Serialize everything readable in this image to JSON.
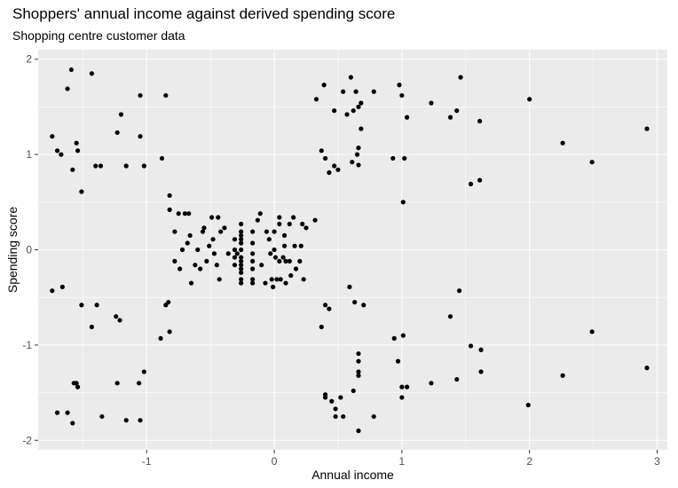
{
  "chart_data": {
    "type": "scatter",
    "title": "Shoppers' annual income against derived spending score",
    "subtitle": "Shopping centre customer data",
    "xlabel": "Annual income",
    "ylabel": "Spending score",
    "xlim": [
      -1.85,
      3.08
    ],
    "ylim": [
      -2.1,
      2.1
    ],
    "x_ticks": [
      -1,
      0,
      1,
      2,
      3
    ],
    "y_ticks": [
      -2,
      -1,
      0,
      1,
      2
    ],
    "x_tick_labels": [
      "-1",
      "0",
      "1",
      "2",
      "3"
    ],
    "y_tick_labels": [
      "-2",
      "-1",
      "0",
      "1",
      "2"
    ],
    "grid": true,
    "panel_color": "#ebebeb",
    "grid_color": "#ffffff",
    "point_color": "#000000",
    "points": [
      [
        -1.74,
        1.19
      ],
      [
        -1.7,
        1.04
      ],
      [
        -1.67,
        1.0
      ],
      [
        -1.62,
        1.69
      ],
      [
        -1.59,
        1.89
      ],
      [
        -1.58,
        0.84
      ],
      [
        -1.55,
        1.12
      ],
      [
        -1.54,
        1.04
      ],
      [
        -1.51,
        0.61
      ],
      [
        -1.43,
        1.85
      ],
      [
        -1.4,
        0.88
      ],
      [
        -1.36,
        0.88
      ],
      [
        -1.23,
        1.23
      ],
      [
        -1.2,
        1.42
      ],
      [
        -1.16,
        0.88
      ],
      [
        -1.05,
        1.62
      ],
      [
        -1.05,
        1.19
      ],
      [
        -1.02,
        0.88
      ],
      [
        -0.88,
        0.96
      ],
      [
        -0.85,
        1.62
      ],
      [
        -1.74,
        -0.43
      ],
      [
        -1.66,
        -0.39
      ],
      [
        -1.51,
        -0.58
      ],
      [
        -1.43,
        -0.81
      ],
      [
        -1.39,
        -0.58
      ],
      [
        -1.24,
        -0.7
      ],
      [
        -1.21,
        -0.74
      ],
      [
        -0.89,
        -0.93
      ],
      [
        -0.85,
        -0.58
      ],
      [
        -0.83,
        -0.55
      ],
      [
        -0.82,
        -0.86
      ],
      [
        -1.7,
        -1.71
      ],
      [
        -1.62,
        -1.71
      ],
      [
        -1.58,
        -1.82
      ],
      [
        -1.57,
        -1.4
      ],
      [
        -1.55,
        -1.4
      ],
      [
        -1.54,
        -1.44
      ],
      [
        -1.35,
        -1.75
      ],
      [
        -1.23,
        -1.4
      ],
      [
        -1.16,
        -1.79
      ],
      [
        -1.06,
        -1.4
      ],
      [
        -1.05,
        -1.79
      ],
      [
        -1.02,
        -1.28
      ],
      [
        -0.82,
        0.57
      ],
      [
        -0.82,
        0.42
      ],
      [
        -0.78,
        0.19
      ],
      [
        -0.78,
        -0.12
      ],
      [
        -0.75,
        0.38
      ],
      [
        -0.74,
        -0.2
      ],
      [
        -0.72,
        0.0
      ],
      [
        -0.7,
        0.38
      ],
      [
        -0.68,
        0.07
      ],
      [
        -0.67,
        0.38
      ],
      [
        -0.66,
        0.15
      ],
      [
        -0.65,
        -0.35
      ],
      [
        -0.62,
        -0.16
      ],
      [
        -0.6,
        0.0
      ],
      [
        -0.58,
        -0.2
      ],
      [
        -0.56,
        0.19
      ],
      [
        -0.55,
        0.23
      ],
      [
        -0.53,
        -0.12
      ],
      [
        -0.51,
        0.04
      ],
      [
        -0.49,
        0.34
      ],
      [
        -0.48,
        0.11
      ],
      [
        -0.47,
        -0.04
      ],
      [
        -0.45,
        -0.16
      ],
      [
        -0.44,
        0.34
      ],
      [
        -0.43,
        -0.31
      ],
      [
        -0.42,
        0.19
      ],
      [
        -0.39,
        0.23
      ],
      [
        -0.36,
        -0.04
      ],
      [
        -0.31,
        0.11
      ],
      [
        -0.31,
        0.0
      ],
      [
        -0.31,
        -0.08
      ],
      [
        -0.31,
        -0.16
      ],
      [
        -0.29,
        -0.04
      ],
      [
        -0.26,
        0.27
      ],
      [
        -0.26,
        0.19
      ],
      [
        -0.26,
        0.15
      ],
      [
        -0.26,
        0.11
      ],
      [
        -0.26,
        0.07
      ],
      [
        -0.26,
        0.0
      ],
      [
        -0.26,
        -0.08
      ],
      [
        -0.26,
        -0.12
      ],
      [
        -0.26,
        -0.16
      ],
      [
        -0.26,
        -0.2
      ],
      [
        -0.26,
        -0.24
      ],
      [
        -0.26,
        -0.31
      ],
      [
        -0.26,
        -0.35
      ],
      [
        -0.17,
        0.19
      ],
      [
        -0.17,
        0.07
      ],
      [
        -0.17,
        -0.04
      ],
      [
        -0.17,
        -0.12
      ],
      [
        -0.17,
        -0.2
      ],
      [
        -0.17,
        -0.31
      ],
      [
        -0.17,
        -0.35
      ],
      [
        -0.13,
        0.31
      ],
      [
        -0.11,
        0.38
      ],
      [
        -0.1,
        -0.16
      ],
      [
        -0.07,
        -0.35
      ],
      [
        -0.06,
        0.19
      ],
      [
        -0.04,
        0.11
      ],
      [
        -0.03,
        -0.04
      ],
      [
        -0.02,
        -0.31
      ],
      [
        -0.01,
        -0.39
      ],
      [
        0.0,
        0.19
      ],
      [
        0.0,
        0.0
      ],
      [
        0.01,
        -0.08
      ],
      [
        0.02,
        -0.31
      ],
      [
        0.04,
        0.34
      ],
      [
        0.04,
        0.27
      ],
      [
        0.04,
        -0.12
      ],
      [
        0.05,
        -0.31
      ],
      [
        0.07,
        -0.08
      ],
      [
        0.08,
        0.15
      ],
      [
        0.08,
        0.04
      ],
      [
        0.09,
        -0.12
      ],
      [
        0.09,
        -0.35
      ],
      [
        0.12,
        0.27
      ],
      [
        0.12,
        -0.12
      ],
      [
        0.13,
        -0.27
      ],
      [
        0.15,
        0.34
      ],
      [
        0.16,
        0.04
      ],
      [
        0.17,
        -0.2
      ],
      [
        0.2,
        -0.12
      ],
      [
        0.21,
        0.04
      ],
      [
        0.22,
        0.27
      ],
      [
        0.23,
        -0.31
      ],
      [
        0.25,
        0.23
      ],
      [
        0.32,
        0.31
      ],
      [
        0.33,
        1.58
      ],
      [
        0.37,
        1.04
      ],
      [
        0.39,
        1.73
      ],
      [
        0.4,
        0.96
      ],
      [
        0.43,
        0.81
      ],
      [
        0.47,
        1.46
      ],
      [
        0.47,
        0.88
      ],
      [
        0.5,
        0.84
      ],
      [
        0.54,
        1.66
      ],
      [
        0.57,
        1.42
      ],
      [
        0.6,
        1.81
      ],
      [
        0.61,
        0.92
      ],
      [
        0.62,
        1.46
      ],
      [
        0.64,
        1.66
      ],
      [
        0.65,
        1.0
      ],
      [
        0.66,
        1.5
      ],
      [
        0.66,
        0.89
      ],
      [
        0.66,
        1.07
      ],
      [
        0.68,
        1.27
      ],
      [
        0.68,
        1.54
      ],
      [
        0.78,
        1.66
      ],
      [
        0.93,
        0.96
      ],
      [
        0.98,
        1.73
      ],
      [
        1.0,
        1.62
      ],
      [
        1.02,
        0.96
      ],
      [
        1.01,
        0.5
      ],
      [
        1.04,
        1.39
      ],
      [
        1.23,
        1.54
      ],
      [
        1.38,
        1.39
      ],
      [
        1.43,
        1.46
      ],
      [
        1.46,
        1.81
      ],
      [
        1.54,
        0.69
      ],
      [
        1.61,
        1.35
      ],
      [
        1.61,
        0.73
      ],
      [
        2.0,
        1.58
      ],
      [
        2.26,
        1.12
      ],
      [
        2.49,
        0.92
      ],
      [
        2.92,
        1.27
      ],
      [
        0.37,
        -0.81
      ],
      [
        0.4,
        -0.58
      ],
      [
        0.43,
        -0.62
      ],
      [
        0.59,
        -0.39
      ],
      [
        0.63,
        -0.55
      ],
      [
        0.7,
        -0.58
      ],
      [
        1.01,
        -0.9
      ],
      [
        1.45,
        -0.43
      ],
      [
        1.38,
        -0.7
      ],
      [
        0.94,
        -0.93
      ],
      [
        0.4,
        -1.52
      ],
      [
        0.4,
        -1.55
      ],
      [
        0.45,
        -1.59
      ],
      [
        0.48,
        -1.67
      ],
      [
        0.48,
        -1.75
      ],
      [
        0.52,
        -1.55
      ],
      [
        0.54,
        -1.75
      ],
      [
        0.62,
        -1.48
      ],
      [
        0.66,
        -1.09
      ],
      [
        0.66,
        -1.17
      ],
      [
        0.66,
        -1.28
      ],
      [
        0.66,
        -1.32
      ],
      [
        0.66,
        -1.9
      ],
      [
        0.78,
        -1.75
      ],
      [
        0.97,
        -1.17
      ],
      [
        1.0,
        -1.44
      ],
      [
        1.0,
        -1.55
      ],
      [
        1.04,
        -1.44
      ],
      [
        1.23,
        -1.4
      ],
      [
        1.43,
        -1.36
      ],
      [
        1.54,
        -1.01
      ],
      [
        1.62,
        -1.05
      ],
      [
        1.62,
        -1.28
      ],
      [
        1.99,
        -1.63
      ],
      [
        2.26,
        -1.32
      ],
      [
        2.49,
        -0.86
      ],
      [
        2.92,
        -1.24
      ]
    ]
  }
}
